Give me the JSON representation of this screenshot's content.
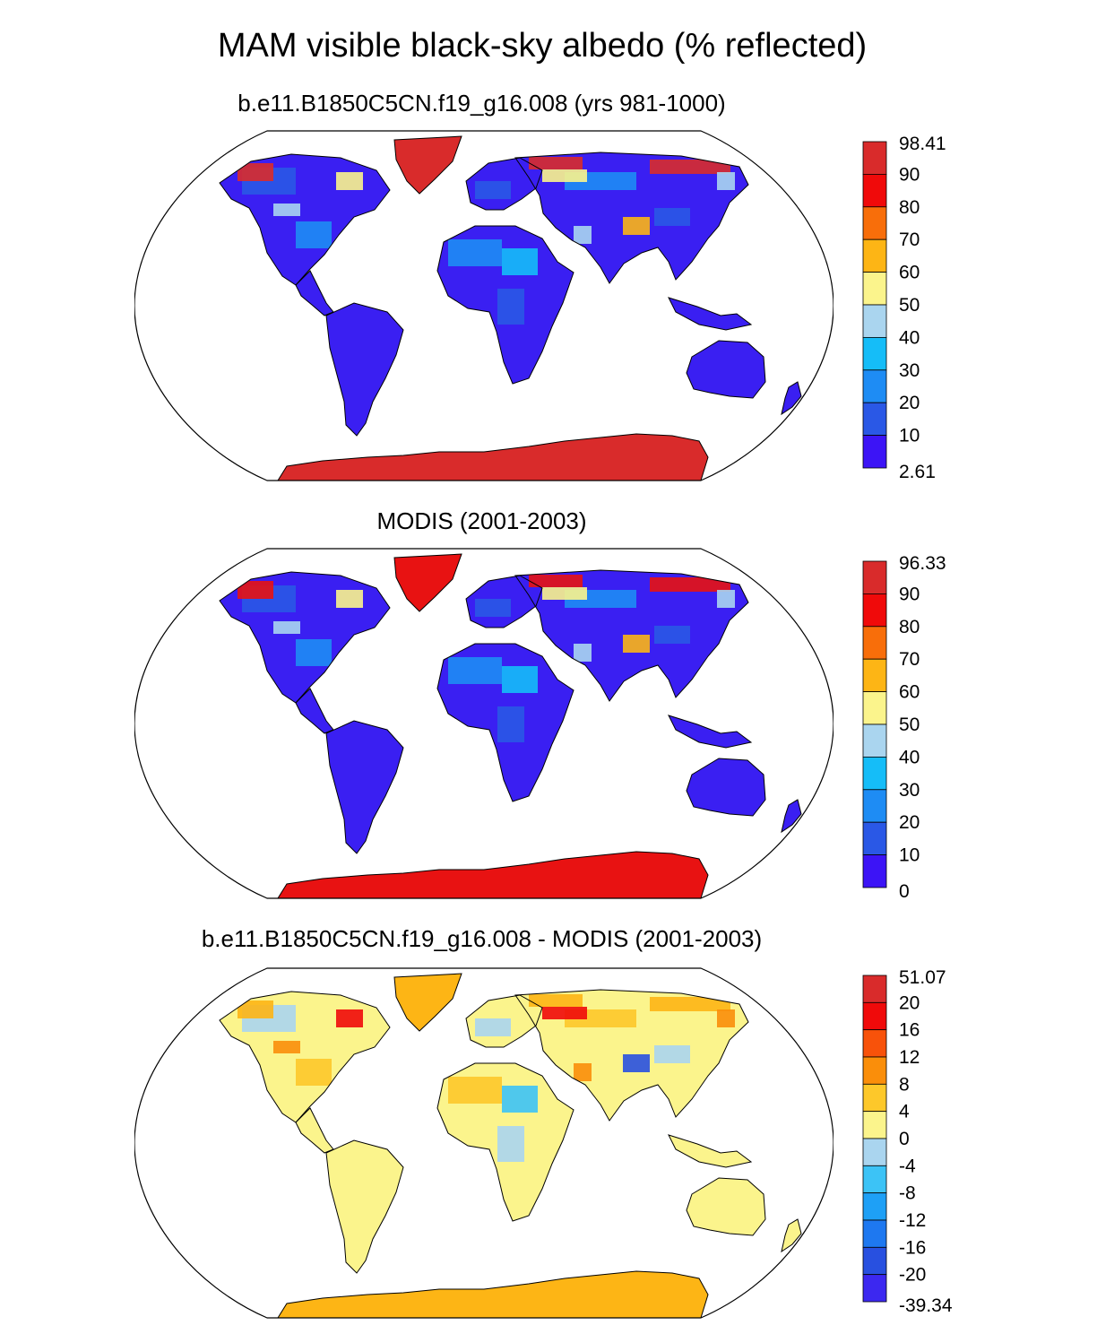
{
  "title": "MAM visible black-sky albedo (% reflected)",
  "panels": [
    {
      "id": "model",
      "title": "b.e11.B1850C5CN.f19_g16.008 (yrs 981-1000)",
      "colorbar": {
        "labels": [
          "98.41",
          "90",
          "80",
          "70",
          "60",
          "50",
          "40",
          "30",
          "20",
          "10",
          "2.61"
        ],
        "colors": [
          "#d92b2b",
          "#f00a0a",
          "#f86e0a",
          "#fdb515",
          "#fbf48c",
          "#aad5ef",
          "#15bdf8",
          "#1e8cf4",
          "#2a58e6",
          "#3c14f6"
        ]
      },
      "palette": {
        "land": "#3a1ff2",
        "mid": "#2a58e6",
        "light": "#1e8cf4",
        "cyan": "#15bdf8",
        "pale": "#aad5ef",
        "yellow": "#fbf48c",
        "orange": "#fdb515",
        "ice": "#d92b2b"
      }
    },
    {
      "id": "obs",
      "title": "MODIS (2001-2003)",
      "colorbar": {
        "labels": [
          "96.33",
          "90",
          "80",
          "70",
          "60",
          "50",
          "40",
          "30",
          "20",
          "10",
          "0"
        ],
        "colors": [
          "#d92b2b",
          "#f00a0a",
          "#f86e0a",
          "#fdb515",
          "#fbf48c",
          "#aad5ef",
          "#15bdf8",
          "#1e8cf4",
          "#2a58e6",
          "#3c14f6"
        ]
      },
      "palette": {
        "land": "#3a1ff2",
        "mid": "#2a58e6",
        "light": "#1e8cf4",
        "cyan": "#15bdf8",
        "pale": "#aad5ef",
        "yellow": "#fbf48c",
        "orange": "#fdb515",
        "ice": "#e81212"
      }
    },
    {
      "id": "diff",
      "title": "b.e11.B1850C5CN.f19_g16.008 - MODIS (2001-2003)",
      "colorbar": {
        "labels": [
          "51.07",
          "20",
          "16",
          "12",
          "8",
          "4",
          "0",
          "-4",
          "-8",
          "-12",
          "-16",
          "-20",
          "-39.34"
        ],
        "colors": [
          "#d92b2b",
          "#f00a0a",
          "#f8520a",
          "#fa8e0a",
          "#fdc82a",
          "#fbf48c",
          "#aad5ef",
          "#3cc3f6",
          "#1ea0f6",
          "#1e78f0",
          "#2850e0",
          "#3c28f0"
        ]
      },
      "palette": {
        "land": "#fbf48c",
        "mid": "#aad5ef",
        "light": "#fdc82a",
        "cyan": "#3cc3f6",
        "pale": "#fa8e0a",
        "yellow": "#f00a0a",
        "orange": "#2850e0",
        "ice": "#fdb515"
      }
    }
  ]
}
